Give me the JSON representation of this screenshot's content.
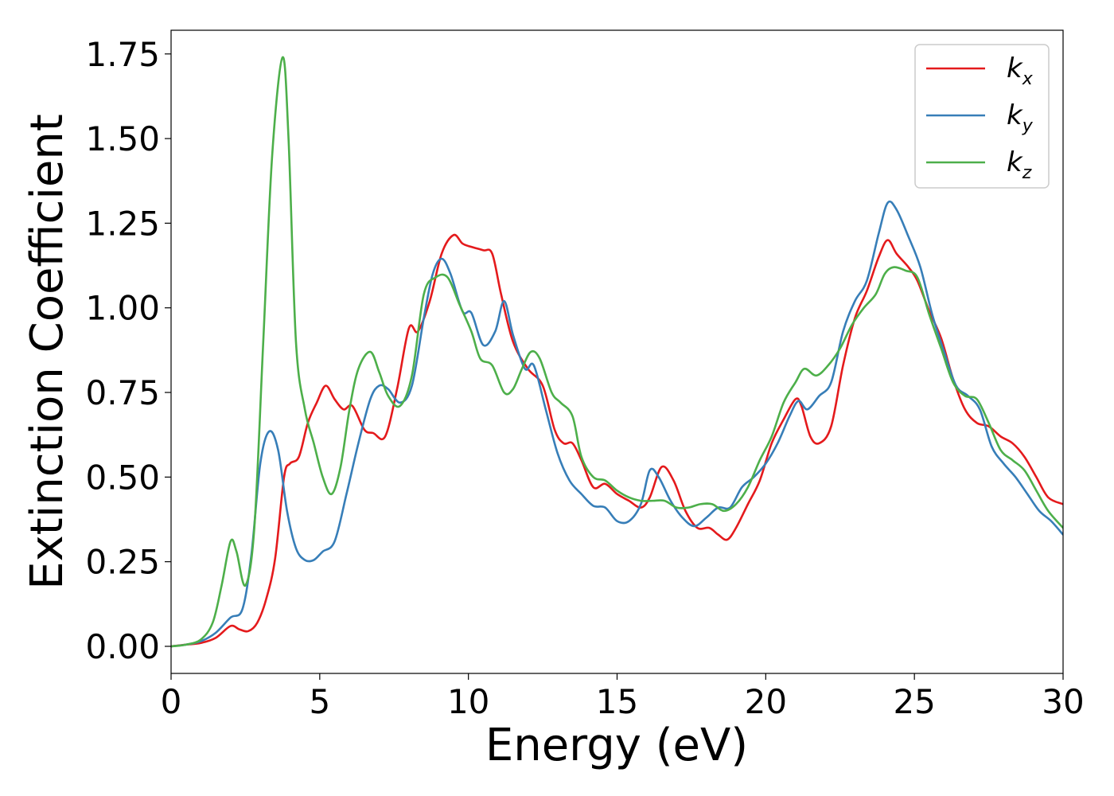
{
  "chart_data": {
    "type": "line",
    "xlabel": "Energy (eV)",
    "ylabel": "Extinction Coefficient",
    "xlim": [
      0,
      30
    ],
    "ylim": [
      -0.08,
      1.82
    ],
    "xticks": [
      0,
      5,
      10,
      15,
      20,
      25,
      30
    ],
    "xtick_labels": [
      "0",
      "5",
      "10",
      "15",
      "20",
      "25",
      "30"
    ],
    "yticks": [
      0.0,
      0.25,
      0.5,
      0.75,
      1.0,
      1.25,
      1.5,
      1.75
    ],
    "ytick_labels": [
      "0.00",
      "0.25",
      "0.50",
      "0.75",
      "1.00",
      "1.25",
      "1.50",
      "1.75"
    ],
    "grid": false,
    "legend_position": "top-right",
    "series": [
      {
        "name": "k_x",
        "label_main": "k",
        "label_sub": "x",
        "color": "#e41a1c",
        "points": [
          [
            0,
            0
          ],
          [
            0.5,
            0.005
          ],
          [
            1,
            0.01
          ],
          [
            1.5,
            0.025
          ],
          [
            2,
            0.06
          ],
          [
            2.3,
            0.05
          ],
          [
            2.6,
            0.045
          ],
          [
            2.9,
            0.07
          ],
          [
            3.2,
            0.14
          ],
          [
            3.5,
            0.26
          ],
          [
            3.8,
            0.5
          ],
          [
            4.0,
            0.54
          ],
          [
            4.3,
            0.56
          ],
          [
            4.6,
            0.66
          ],
          [
            4.9,
            0.72
          ],
          [
            5.2,
            0.77
          ],
          [
            5.5,
            0.73
          ],
          [
            5.8,
            0.7
          ],
          [
            6.1,
            0.71
          ],
          [
            6.5,
            0.64
          ],
          [
            6.8,
            0.63
          ],
          [
            7.2,
            0.62
          ],
          [
            7.6,
            0.76
          ],
          [
            8.0,
            0.94
          ],
          [
            8.3,
            0.93
          ],
          [
            8.7,
            1.02
          ],
          [
            9.1,
            1.16
          ],
          [
            9.5,
            1.215
          ],
          [
            9.8,
            1.19
          ],
          [
            10.1,
            1.18
          ],
          [
            10.5,
            1.17
          ],
          [
            10.8,
            1.16
          ],
          [
            11.1,
            1.04
          ],
          [
            11.5,
            0.9
          ],
          [
            12.0,
            0.82
          ],
          [
            12.5,
            0.77
          ],
          [
            12.9,
            0.64
          ],
          [
            13.2,
            0.6
          ],
          [
            13.5,
            0.6
          ],
          [
            13.8,
            0.55
          ],
          [
            14.2,
            0.47
          ],
          [
            14.6,
            0.48
          ],
          [
            15.0,
            0.45
          ],
          [
            15.4,
            0.43
          ],
          [
            15.8,
            0.41
          ],
          [
            16.1,
            0.44
          ],
          [
            16.5,
            0.53
          ],
          [
            16.9,
            0.49
          ],
          [
            17.3,
            0.4
          ],
          [
            17.7,
            0.35
          ],
          [
            18.1,
            0.35
          ],
          [
            18.4,
            0.33
          ],
          [
            18.7,
            0.315
          ],
          [
            19.0,
            0.35
          ],
          [
            19.4,
            0.42
          ],
          [
            19.8,
            0.49
          ],
          [
            20.2,
            0.6
          ],
          [
            20.6,
            0.67
          ],
          [
            21.0,
            0.73
          ],
          [
            21.2,
            0.71
          ],
          [
            21.5,
            0.62
          ],
          [
            21.8,
            0.6
          ],
          [
            22.2,
            0.65
          ],
          [
            22.6,
            0.83
          ],
          [
            23.0,
            0.97
          ],
          [
            23.4,
            1.05
          ],
          [
            23.8,
            1.15
          ],
          [
            24.1,
            1.2
          ],
          [
            24.4,
            1.16
          ],
          [
            24.8,
            1.12
          ],
          [
            25.1,
            1.08
          ],
          [
            25.5,
            0.99
          ],
          [
            25.9,
            0.91
          ],
          [
            26.3,
            0.79
          ],
          [
            26.7,
            0.7
          ],
          [
            27.1,
            0.66
          ],
          [
            27.5,
            0.65
          ],
          [
            27.9,
            0.62
          ],
          [
            28.3,
            0.6
          ],
          [
            28.7,
            0.56
          ],
          [
            29.1,
            0.5
          ],
          [
            29.5,
            0.44
          ],
          [
            30.0,
            0.42
          ]
        ]
      },
      {
        "name": "k_y",
        "label_main": "k",
        "label_sub": "y",
        "color": "#377eb8",
        "points": [
          [
            0,
            0
          ],
          [
            0.5,
            0.005
          ],
          [
            1,
            0.015
          ],
          [
            1.5,
            0.04
          ],
          [
            2,
            0.085
          ],
          [
            2.4,
            0.11
          ],
          [
            2.7,
            0.27
          ],
          [
            3.0,
            0.54
          ],
          [
            3.3,
            0.635
          ],
          [
            3.6,
            0.58
          ],
          [
            3.9,
            0.4
          ],
          [
            4.2,
            0.29
          ],
          [
            4.5,
            0.255
          ],
          [
            4.8,
            0.255
          ],
          [
            5.1,
            0.28
          ],
          [
            5.5,
            0.31
          ],
          [
            5.9,
            0.45
          ],
          [
            6.3,
            0.6
          ],
          [
            6.7,
            0.73
          ],
          [
            7.0,
            0.77
          ],
          [
            7.3,
            0.76
          ],
          [
            7.7,
            0.72
          ],
          [
            8.1,
            0.77
          ],
          [
            8.5,
            0.97
          ],
          [
            8.8,
            1.1
          ],
          [
            9.1,
            1.145
          ],
          [
            9.4,
            1.1
          ],
          [
            9.8,
            0.99
          ],
          [
            10.1,
            0.985
          ],
          [
            10.5,
            0.89
          ],
          [
            10.9,
            0.93
          ],
          [
            11.2,
            1.02
          ],
          [
            11.5,
            0.92
          ],
          [
            11.9,
            0.82
          ],
          [
            12.2,
            0.83
          ],
          [
            12.6,
            0.7
          ],
          [
            13.0,
            0.57
          ],
          [
            13.4,
            0.49
          ],
          [
            13.8,
            0.45
          ],
          [
            14.2,
            0.415
          ],
          [
            14.6,
            0.41
          ],
          [
            15.0,
            0.37
          ],
          [
            15.4,
            0.37
          ],
          [
            15.8,
            0.42
          ],
          [
            16.1,
            0.52
          ],
          [
            16.4,
            0.5
          ],
          [
            16.8,
            0.43
          ],
          [
            17.2,
            0.38
          ],
          [
            17.6,
            0.355
          ],
          [
            18.0,
            0.38
          ],
          [
            18.4,
            0.41
          ],
          [
            18.8,
            0.41
          ],
          [
            19.2,
            0.47
          ],
          [
            19.6,
            0.5
          ],
          [
            20.0,
            0.54
          ],
          [
            20.4,
            0.6
          ],
          [
            20.8,
            0.68
          ],
          [
            21.1,
            0.725
          ],
          [
            21.4,
            0.7
          ],
          [
            21.8,
            0.74
          ],
          [
            22.2,
            0.78
          ],
          [
            22.6,
            0.93
          ],
          [
            23.0,
            1.02
          ],
          [
            23.4,
            1.08
          ],
          [
            23.8,
            1.22
          ],
          [
            24.1,
            1.31
          ],
          [
            24.4,
            1.29
          ],
          [
            24.8,
            1.21
          ],
          [
            25.2,
            1.12
          ],
          [
            25.6,
            0.98
          ],
          [
            26.0,
            0.87
          ],
          [
            26.4,
            0.77
          ],
          [
            26.8,
            0.74
          ],
          [
            27.2,
            0.7
          ],
          [
            27.6,
            0.59
          ],
          [
            28.0,
            0.54
          ],
          [
            28.4,
            0.5
          ],
          [
            28.8,
            0.45
          ],
          [
            29.2,
            0.4
          ],
          [
            29.6,
            0.37
          ],
          [
            30.0,
            0.33
          ]
        ]
      },
      {
        "name": "k_z",
        "label_main": "k",
        "label_sub": "z",
        "color": "#4daf4a",
        "points": [
          [
            0,
            0
          ],
          [
            0.5,
            0.005
          ],
          [
            1,
            0.02
          ],
          [
            1.4,
            0.07
          ],
          [
            1.7,
            0.18
          ],
          [
            2.0,
            0.31
          ],
          [
            2.2,
            0.28
          ],
          [
            2.5,
            0.18
          ],
          [
            2.8,
            0.35
          ],
          [
            3.1,
            0.9
          ],
          [
            3.4,
            1.45
          ],
          [
            3.75,
            1.74
          ],
          [
            3.95,
            1.5
          ],
          [
            4.2,
            0.9
          ],
          [
            4.5,
            0.7
          ],
          [
            4.8,
            0.6
          ],
          [
            5.1,
            0.5
          ],
          [
            5.4,
            0.45
          ],
          [
            5.7,
            0.53
          ],
          [
            6.0,
            0.7
          ],
          [
            6.3,
            0.82
          ],
          [
            6.7,
            0.87
          ],
          [
            7.0,
            0.81
          ],
          [
            7.3,
            0.74
          ],
          [
            7.7,
            0.71
          ],
          [
            8.1,
            0.8
          ],
          [
            8.5,
            1.04
          ],
          [
            8.9,
            1.09
          ],
          [
            9.3,
            1.09
          ],
          [
            9.7,
            1.01
          ],
          [
            10.1,
            0.93
          ],
          [
            10.4,
            0.85
          ],
          [
            10.8,
            0.83
          ],
          [
            11.2,
            0.75
          ],
          [
            11.5,
            0.76
          ],
          [
            11.8,
            0.82
          ],
          [
            12.1,
            0.87
          ],
          [
            12.4,
            0.85
          ],
          [
            12.8,
            0.75
          ],
          [
            13.1,
            0.72
          ],
          [
            13.5,
            0.68
          ],
          [
            13.8,
            0.56
          ],
          [
            14.2,
            0.5
          ],
          [
            14.6,
            0.49
          ],
          [
            15.0,
            0.46
          ],
          [
            15.4,
            0.44
          ],
          [
            15.8,
            0.43
          ],
          [
            16.2,
            0.43
          ],
          [
            16.6,
            0.43
          ],
          [
            17.0,
            0.41
          ],
          [
            17.4,
            0.41
          ],
          [
            17.8,
            0.42
          ],
          [
            18.2,
            0.42
          ],
          [
            18.6,
            0.4
          ],
          [
            19.0,
            0.42
          ],
          [
            19.4,
            0.47
          ],
          [
            19.8,
            0.55
          ],
          [
            20.2,
            0.62
          ],
          [
            20.6,
            0.72
          ],
          [
            21.0,
            0.78
          ],
          [
            21.3,
            0.82
          ],
          [
            21.7,
            0.8
          ],
          [
            22.1,
            0.83
          ],
          [
            22.5,
            0.88
          ],
          [
            22.9,
            0.95
          ],
          [
            23.3,
            1.0
          ],
          [
            23.7,
            1.04
          ],
          [
            24.0,
            1.1
          ],
          [
            24.3,
            1.12
          ],
          [
            24.7,
            1.11
          ],
          [
            25.1,
            1.09
          ],
          [
            25.5,
            0.98
          ],
          [
            25.9,
            0.88
          ],
          [
            26.3,
            0.78
          ],
          [
            26.7,
            0.74
          ],
          [
            27.1,
            0.73
          ],
          [
            27.5,
            0.66
          ],
          [
            27.9,
            0.58
          ],
          [
            28.3,
            0.55
          ],
          [
            28.7,
            0.52
          ],
          [
            29.1,
            0.46
          ],
          [
            29.5,
            0.4
          ],
          [
            30.0,
            0.35
          ]
        ]
      }
    ]
  }
}
